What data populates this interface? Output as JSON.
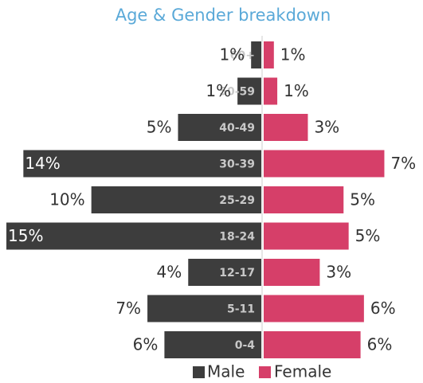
{
  "chart_data": {
    "type": "pyramid",
    "title": "Age & Gender breakdown",
    "categories": [
      "60+",
      "50-59",
      "40-49",
      "30-39",
      "25-29",
      "18-24",
      "12-17",
      "5-11",
      "0-4"
    ],
    "series": [
      {
        "name": "Male",
        "color": "#3d3d3d",
        "values": [
          0.6,
          1.4,
          4.9,
          14,
          10,
          15,
          4.3,
          6.7,
          5.7
        ],
        "value_labels": [
          "1%",
          "1%",
          "5%",
          "14%",
          "10%",
          "15%",
          "4%",
          "7%",
          "6%"
        ]
      },
      {
        "name": "Female",
        "color": "#d63f69",
        "values": [
          0.6,
          0.8,
          2.6,
          7.1,
          4.7,
          5,
          3.3,
          5.9,
          5.7
        ],
        "value_labels": [
          "1%",
          "1%",
          "3%",
          "7%",
          "5%",
          "5%",
          "3%",
          "6%",
          "6%"
        ]
      }
    ],
    "xlim": [
      0,
      15
    ],
    "legend": "bottom"
  }
}
